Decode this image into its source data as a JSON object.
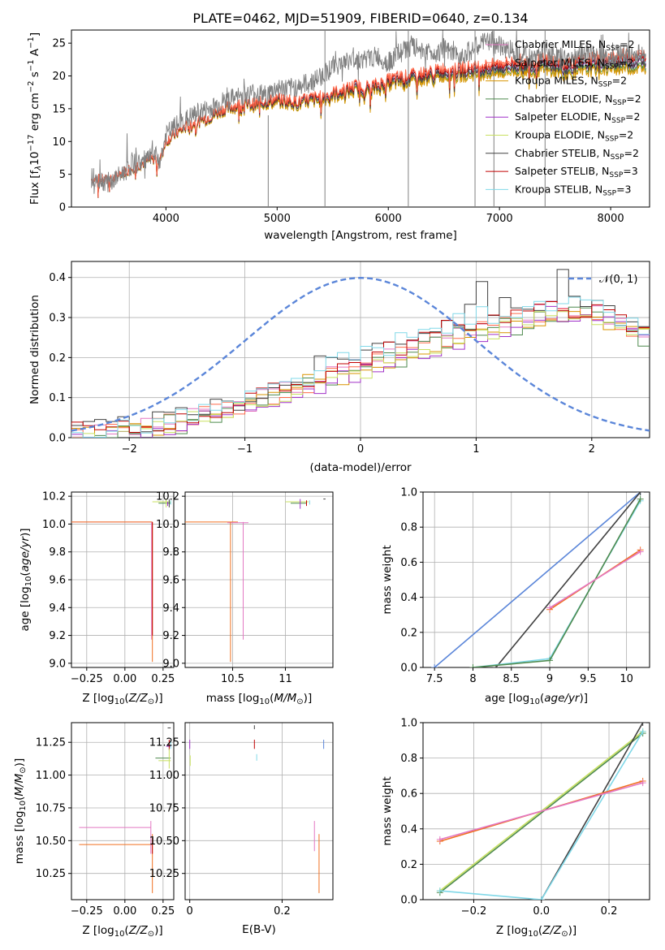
{
  "figure": {
    "title": "PLATE=0462, MJD=51909, FIBERID=0640, z=0.134"
  },
  "colors": {
    "chabrier_miles": "#e377c2",
    "salpeter_miles": "#ff6a4a",
    "kroupa_miles": "#d99400",
    "chabrier_elodie": "#4e8a4e",
    "salpeter_elodie": "#a030c8",
    "kroupa_elodie": "#c8e060",
    "chabrier_stelib": "#404040",
    "salpeter_stelib": "#c00000",
    "kroupa_stelib": "#80d8e8",
    "observed": "#808080",
    "normal": "#5b86d9",
    "orange_model": "#f07020",
    "blue_model": "#5b86d9",
    "grid": "#b0b0b0"
  },
  "chart_data": [
    {
      "id": "spectrum",
      "type": "line",
      "xlabel": "wavelength [Angstrom, rest frame]",
      "ylabel": "Flux [f_λ10^-17 erg cm^-2 s^-1 A^-1]",
      "xlim": [
        3150,
        8350
      ],
      "ylim": [
        0,
        27
      ],
      "xticks": [
        4000,
        5000,
        6000,
        7000,
        8000
      ],
      "yticks": [
        0,
        5,
        10,
        15,
        20,
        25
      ],
      "grid": false,
      "legend_position": "top-right",
      "legend": [
        {
          "label": "Chabrier MILES, N",
          "sub": "SSP",
          "tail": "=2",
          "color_key": "chabrier_miles"
        },
        {
          "label": "Salpeter MILES, N",
          "sub": "SSP",
          "tail": "=2",
          "color_key": "salpeter_miles"
        },
        {
          "label": "Kroupa MILES, N",
          "sub": "SSP",
          "tail": "=2",
          "color_key": "kroupa_miles"
        },
        {
          "label": "Chabrier ELODIE, N",
          "sub": "SSP",
          "tail": "=2",
          "color_key": "chabrier_elodie"
        },
        {
          "label": "Salpeter ELODIE, N",
          "sub": "SSP",
          "tail": "=2",
          "color_key": "salpeter_elodie"
        },
        {
          "label": "Kroupa ELODIE, N",
          "sub": "SSP",
          "tail": "=2",
          "color_key": "kroupa_elodie"
        },
        {
          "label": "Chabrier STELIB, N",
          "sub": "SSP",
          "tail": "=2",
          "color_key": "chabrier_stelib"
        },
        {
          "label": "Salpeter STELIB, N",
          "sub": "SSP",
          "tail": "=3",
          "color_key": "salpeter_stelib"
        },
        {
          "label": "Kroupa STELIB, N",
          "sub": "SSP",
          "tail": "=3",
          "color_key": "kroupa_stelib"
        }
      ],
      "series_envelope": {
        "x": [
          3350,
          3500,
          3600,
          3700,
          3800,
          3900,
          3950,
          4000,
          4100,
          4200,
          4300,
          4400,
          4500,
          4600,
          4700,
          4800,
          4900,
          5000,
          5100,
          5200,
          5300,
          5400,
          5500,
          5600,
          5700,
          5800,
          5900,
          6000,
          6100,
          6200,
          6300,
          6400,
          6500,
          6600,
          6700,
          6800,
          6900,
          7000,
          7100,
          7200,
          7300,
          7400,
          7500,
          7600,
          7700,
          7800,
          7900,
          8000,
          8100,
          8200,
          8300
        ],
        "model_y": [
          4.3,
          4.0,
          5.2,
          6.0,
          6.7,
          7.4,
          7.2,
          10.0,
          11.2,
          12.3,
          13.0,
          13.6,
          14.6,
          15.1,
          15.5,
          15.4,
          15.8,
          16.0,
          15.9,
          15.6,
          16.1,
          16.3,
          16.9,
          17.3,
          17.9,
          17.7,
          18.0,
          18.7,
          19.1,
          19.3,
          19.6,
          19.8,
          20.3,
          20.1,
          20.4,
          20.5,
          20.6,
          20.8,
          21.0,
          21.2,
          21.0,
          21.3,
          21.1,
          20.7,
          21.0,
          21.2,
          21.5,
          21.4,
          21.8,
          21.6,
          21.8
        ],
        "observed_y": [
          4.5,
          3.7,
          5.0,
          6.5,
          7.0,
          7.8,
          7.0,
          11.0,
          12.5,
          13.5,
          14.5,
          15.0,
          16.0,
          16.5,
          17.0,
          17.5,
          17.0,
          18.2,
          18.0,
          18.5,
          19.0,
          20.0,
          21.5,
          22.0,
          22.5,
          22.5,
          23.0,
          22.0,
          23.5,
          24.5,
          24.0,
          23.5,
          24.0,
          23.0,
          23.5,
          24.5,
          25.5,
          24.5,
          24.0,
          23.5,
          22.5,
          24.0,
          23.0,
          22.5,
          23.0,
          23.5,
          23.0,
          22.5,
          23.5,
          23.0,
          23.5
        ]
      },
      "vertical_lines": [
        4920,
        5430,
        6180,
        6780,
        6950,
        7410
      ]
    },
    {
      "id": "residuals",
      "type": "line",
      "xlabel": "(data-model)/error",
      "ylabel": "Normed distribution",
      "xlim": [
        -2.5,
        2.5
      ],
      "ylim": [
        0,
        0.44
      ],
      "xticks": [
        -2,
        -1,
        0,
        1,
        2
      ],
      "yticks": [
        0.0,
        0.1,
        0.2,
        0.3,
        0.4
      ],
      "grid": true,
      "legend_position": "top-right",
      "legend_label": "𝒩(0, 1)",
      "histogram": {
        "bin_start": -2.5,
        "bin_width": 0.1,
        "base": [
          0.01,
          0.01,
          0.01,
          0.015,
          0.02,
          0.02,
          0.025,
          0.03,
          0.04,
          0.04,
          0.05,
          0.06,
          0.065,
          0.07,
          0.08,
          0.09,
          0.1,
          0.11,
          0.12,
          0.13,
          0.14,
          0.15,
          0.16,
          0.17,
          0.18,
          0.19,
          0.2,
          0.21,
          0.22,
          0.23,
          0.24,
          0.25,
          0.26,
          0.27,
          0.28,
          0.29,
          0.29,
          0.3,
          0.3,
          0.31,
          0.31,
          0.32,
          0.32,
          0.32,
          0.32,
          0.31,
          0.3,
          0.29,
          0.27,
          0.26
        ]
      }
    },
    {
      "id": "age-vs-z",
      "type": "scatter",
      "xlabel": "Z [log10(Z/Z⊙)]",
      "ylabel": "age  [log10(age/yr)]",
      "xlim": [
        -0.35,
        0.32
      ],
      "ylim": [
        8.97,
        10.23
      ],
      "xticks": [
        -0.25,
        0.0,
        0.25
      ],
      "xticklabels": [
        "−0.25",
        "0.00",
        "0.25"
      ],
      "yticks": [
        9.0,
        9.2,
        9.4,
        9.6,
        9.8,
        10.0,
        10.2
      ],
      "grid": true
    },
    {
      "id": "age-vs-mass",
      "type": "scatter",
      "xlabel": "mass [log10(M/M⊙)]",
      "xlim": [
        10.05,
        11.45
      ],
      "ylim": [
        8.97,
        10.23
      ],
      "xticks": [
        10.5,
        11.0
      ],
      "yticks": [
        9.0,
        9.2,
        9.4,
        9.6,
        9.8,
        10.0,
        10.2
      ],
      "grid": true
    },
    {
      "id": "weight-vs-age",
      "type": "line",
      "xlabel": "age  [log10(age/yr)]",
      "ylabel": "mass weight",
      "xlim": [
        7.35,
        10.3
      ],
      "ylim": [
        0.0,
        1.0
      ],
      "xticks": [
        7.5,
        8.0,
        8.5,
        9.0,
        9.5,
        10.0
      ],
      "yticks": [
        0.0,
        0.2,
        0.4,
        0.6,
        0.8,
        1.0
      ],
      "grid": true,
      "series": [
        {
          "color_key": "blue_model",
          "x": [
            7.5,
            10.18
          ],
          "y": [
            0.0,
            1.0
          ]
        },
        {
          "color_key": "chabrier_stelib",
          "x": [
            8.3,
            10.18
          ],
          "y": [
            0.0,
            1.0
          ]
        },
        {
          "color_key": "kroupa_stelib",
          "x": [
            8.0,
            9.0,
            10.18
          ],
          "y": [
            0.0,
            0.05,
            0.95
          ]
        },
        {
          "color_key": "chabrier_elodie",
          "x": [
            8.0,
            9.0,
            10.18
          ],
          "y": [
            0.0,
            0.04,
            0.96
          ]
        },
        {
          "color_key": "orange_model",
          "x": [
            9.0,
            10.18
          ],
          "y": [
            0.33,
            0.67
          ]
        },
        {
          "color_key": "chabrier_miles",
          "x": [
            9.0,
            10.18
          ],
          "y": [
            0.34,
            0.66
          ]
        }
      ]
    },
    {
      "id": "mass-vs-z",
      "type": "scatter",
      "xlabel": "Z [log10(Z/Z⊙)]",
      "ylabel": "mass [log10(M/M⊙)]",
      "xlim": [
        -0.35,
        0.32
      ],
      "ylim": [
        10.05,
        11.4
      ],
      "xticks": [
        -0.25,
        0.0,
        0.25
      ],
      "xticklabels": [
        "−0.25",
        "0.00",
        "0.25"
      ],
      "yticks": [
        10.25,
        10.5,
        10.75,
        11.0,
        11.25
      ],
      "grid": true
    },
    {
      "id": "mass-vs-ebv",
      "type": "scatter",
      "xlabel": "E(B-V)",
      "xlim": [
        -0.01,
        0.31
      ],
      "ylim": [
        10.05,
        11.4
      ],
      "xticks": [
        0.0,
        0.2
      ],
      "yticks": [
        10.25,
        10.5,
        10.75,
        11.0,
        11.25
      ],
      "grid": true
    },
    {
      "id": "weight-vs-z",
      "type": "line",
      "xlabel": "Z [log10(Z/Z⊙)]",
      "ylabel": "mass weight",
      "xlim": [
        -0.35,
        0.32
      ],
      "ylim": [
        0.0,
        1.0
      ],
      "xticks": [
        -0.2,
        0.0,
        0.2
      ],
      "xticklabels": [
        "−0.2",
        "0.0",
        "0.2"
      ],
      "yticks": [
        0.0,
        0.2,
        0.4,
        0.6,
        0.8,
        1.0
      ],
      "grid": true,
      "series": [
        {
          "color_key": "kroupa_elodie",
          "x": [
            -0.3,
            0.3
          ],
          "y": [
            0.05,
            0.95
          ]
        },
        {
          "color_key": "chabrier_elodie",
          "x": [
            -0.3,
            0.3
          ],
          "y": [
            0.04,
            0.94
          ]
        },
        {
          "color_key": "chabrier_stelib",
          "x": [
            0.0,
            0.3
          ],
          "y": [
            0.0,
            1.0
          ]
        },
        {
          "color_key": "kroupa_stelib",
          "x": [
            -0.3,
            0.0,
            0.3
          ],
          "y": [
            0.05,
            0.0,
            0.95
          ]
        },
        {
          "color_key": "orange_model",
          "x": [
            -0.3,
            0.3
          ],
          "y": [
            0.33,
            0.67
          ]
        },
        {
          "color_key": "chabrier_miles",
          "x": [
            -0.3,
            0.3
          ],
          "y": [
            0.34,
            0.66
          ]
        }
      ]
    }
  ]
}
